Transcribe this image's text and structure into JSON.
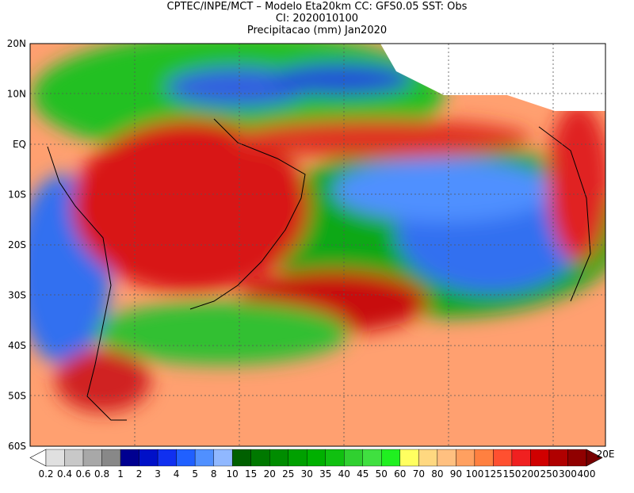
{
  "header": {
    "lines": [
      "CPTEC/INPE/MCT –  Modelo Eta20km CC: GFS0.05 SST: Obs",
      "CI: 2020010100",
      "Precipitacao (mm) Jan2020"
    ]
  },
  "map": {
    "latitude_labels": [
      "20N",
      "10N",
      "EQ",
      "10S",
      "20S",
      "30S",
      "40S",
      "50S",
      "60S"
    ],
    "longitude_label": "20E"
  },
  "colorbar": {
    "levels": [
      0.2,
      0.4,
      0.6,
      0.8,
      1,
      2,
      3,
      4,
      5,
      8,
      10,
      15,
      20,
      25,
      30,
      35,
      40,
      45,
      50,
      60,
      70,
      80,
      90,
      100,
      125,
      150,
      200,
      250,
      300,
      400
    ],
    "colors": [
      "#ffffff",
      "#e0e0e0",
      "#c8c8c8",
      "#a8a8a8",
      "#888888",
      "#000090",
      "#0010c8",
      "#1030f0",
      "#2060ff",
      "#5090ff",
      "#90b8ff",
      "#006000",
      "#007800",
      "#008c00",
      "#00a000",
      "#00b000",
      "#10c010",
      "#30d030",
      "#40e040",
      "#20f020",
      "#ffff60",
      "#ffd880",
      "#ffc080",
      "#ffa060",
      "#ff8040",
      "#ff5030",
      "#f02020",
      "#d00000",
      "#b00000",
      "#900000",
      "#780000"
    ]
  }
}
